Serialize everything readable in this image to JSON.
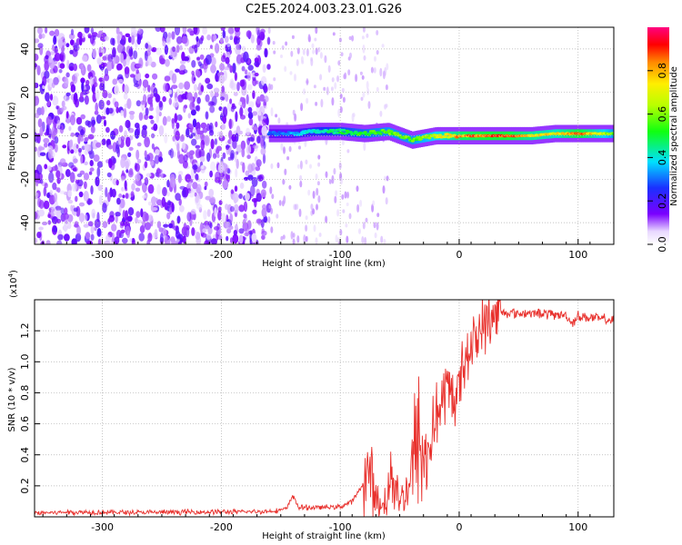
{
  "title": "C2E5.2024.003.23.01.G26",
  "chart_data": [
    {
      "type": "heatmap",
      "xlabel": "Height of straight line (km)",
      "ylabel": "Frequency (Hz)",
      "xlim": [
        -357,
        130
      ],
      "ylim": [
        -50,
        50
      ],
      "xticks": [
        -300,
        -200,
        -100,
        0,
        100
      ],
      "yticks": [
        -40,
        -20,
        0,
        20,
        40
      ],
      "colorbar": {
        "label": "Normalized spectral amplitude",
        "range": [
          0.0,
          1.0
        ],
        "ticks": [
          "0.0",
          "0.2",
          "0.4",
          "0.6",
          "0.8"
        ],
        "colormap": "rainbow (white-violet-blue-cyan-green-yellow-red-magenta)"
      },
      "grid": true,
      "ridge": {
        "description": "narrow high-amplitude band centred near 0 Hz from about -160 km to 130 km; diffuse noise at heights below -160 km",
        "x": [
          -160,
          -140,
          -120,
          -100,
          -80,
          -60,
          -40,
          -20,
          0,
          20,
          40,
          60,
          80,
          100,
          130
        ],
        "frequency": [
          1,
          1,
          2,
          2,
          1,
          2,
          -2,
          0,
          0,
          0,
          0,
          0,
          1,
          1,
          1
        ],
        "amplitude": [
          0.3,
          0.35,
          0.45,
          0.5,
          0.55,
          0.6,
          0.6,
          0.7,
          0.85,
          0.9,
          0.9,
          0.8,
          0.75,
          0.9,
          0.6
        ]
      }
    },
    {
      "type": "line",
      "xlabel": "Height of straight line (km)",
      "ylabel": "SNR (10 * v/v)",
      "multiplier_label": "(x10",
      "multiplier_exp": "4",
      "multiplier_close": ")",
      "xlim": [
        -357,
        130
      ],
      "ylim": [
        0,
        14000
      ],
      "xticks": [
        -300,
        -200,
        -100,
        0,
        100
      ],
      "yticks": [
        0.2,
        0.4,
        0.6,
        0.8,
        1.0,
        1.2
      ],
      "color": "#e8302c",
      "grid": true,
      "series": [
        {
          "x": [
            -357,
            -330,
            -300,
            -270,
            -240,
            -210,
            -180,
            -160,
            -145,
            -140,
            -135,
            -120,
            -100,
            -90,
            -80,
            -75,
            -70,
            -65,
            -60,
            -55,
            -50,
            -45,
            -40,
            -35,
            -30,
            -25,
            -20,
            -15,
            -10,
            -5,
            0,
            5,
            10,
            15,
            20,
            25,
            30,
            35,
            40,
            45,
            50,
            60,
            70,
            80,
            90,
            95,
            100,
            110,
            120,
            130
          ],
          "y": [
            250,
            300,
            300,
            280,
            300,
            320,
            320,
            350,
            500,
            1400,
            600,
            600,
            650,
            1000,
            2200,
            3000,
            1200,
            500,
            1800,
            3100,
            900,
            1500,
            3000,
            5200,
            3500,
            4300,
            6400,
            7100,
            8200,
            7600,
            8300,
            10500,
            11000,
            11700,
            12200,
            12700,
            13000,
            13200,
            13150,
            13200,
            13100,
            13150,
            13100,
            13050,
            13000,
            12500,
            12950,
            12850,
            12750,
            12650
          ]
        }
      ]
    }
  ]
}
